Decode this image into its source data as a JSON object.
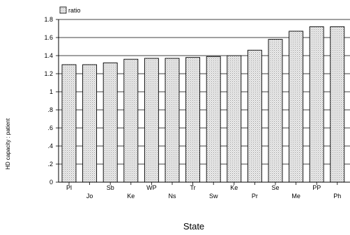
{
  "chart_data": {
    "type": "bar",
    "categories": [
      "Pl",
      "Jo",
      "Sb",
      "Ke",
      "WP",
      "Ns",
      "Tr",
      "Sw",
      "Ke",
      "Pr",
      "Se",
      "Me",
      "PP",
      "Ph"
    ],
    "series": [
      {
        "name": "ratio",
        "values": [
          1.3,
          1.3,
          1.32,
          1.36,
          1.37,
          1.37,
          1.38,
          1.39,
          1.4,
          1.46,
          1.58,
          1.67,
          1.72,
          1.72
        ]
      }
    ],
    "title": "",
    "xlabel": "State",
    "ylabel": "HD capacity : patient",
    "ylim": [
      0,
      1.8
    ],
    "yticks": [
      0,
      0.2,
      0.4,
      0.6,
      0.8,
      1.0,
      1.2,
      1.4,
      1.6,
      1.8
    ],
    "ytick_labels": [
      "0",
      ".2",
      ".4",
      ".6",
      ".8",
      "1",
      "1.2",
      "1.4",
      "1.6",
      "1.8"
    ],
    "grid": "horizontal",
    "legend": "top-left",
    "colors": {
      "bar_fill": "#dcdcdc",
      "bar_stroke": "#000000",
      "grid": "#000000"
    }
  }
}
